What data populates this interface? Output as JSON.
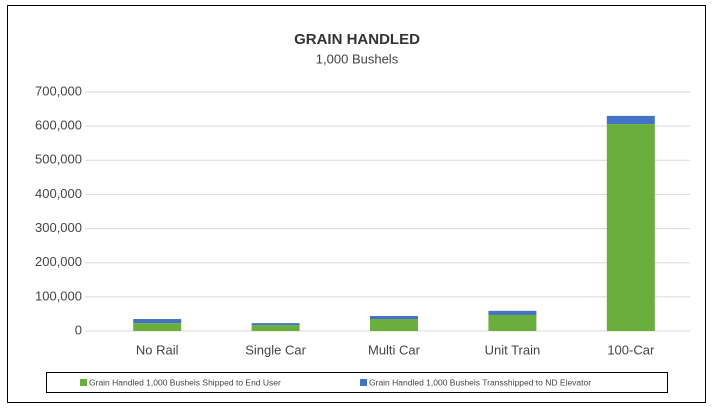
{
  "chart_data": {
    "type": "stacked_bar",
    "title": "GRAIN HANDLED",
    "subtitle": "1,000 Bushels",
    "categories": [
      "No Rail",
      "Single Car",
      "Multi Car",
      "Unit Train",
      "100-Car"
    ],
    "series": [
      {
        "name": "Grain Handled 1,000 Bushels Shipped to End User",
        "color": "#6aaf3d",
        "values": [
          23000,
          17000,
          35000,
          47000,
          606000
        ]
      },
      {
        "name": "Grain Handled 1,000 Bushels Transshipped to ND Elevator",
        "color": "#4472c4",
        "values": [
          12000,
          6000,
          9000,
          12000,
          24000
        ]
      }
    ],
    "ylim": [
      0,
      700000
    ],
    "yticks": [
      0,
      {
        "value": 100000,
        "label": "100,000"
      },
      {
        "value": 200000,
        "label": "200,000"
      },
      {
        "value": 300000,
        "label": "300,000"
      },
      {
        "value": 400000,
        "label": "400,000"
      },
      {
        "value": 500000,
        "label": "500,000"
      },
      {
        "value": 600000,
        "label": "600,000"
      },
      {
        "value": 700000,
        "label": "700,000"
      }
    ],
    "grid": true,
    "legend": "bottom"
  }
}
